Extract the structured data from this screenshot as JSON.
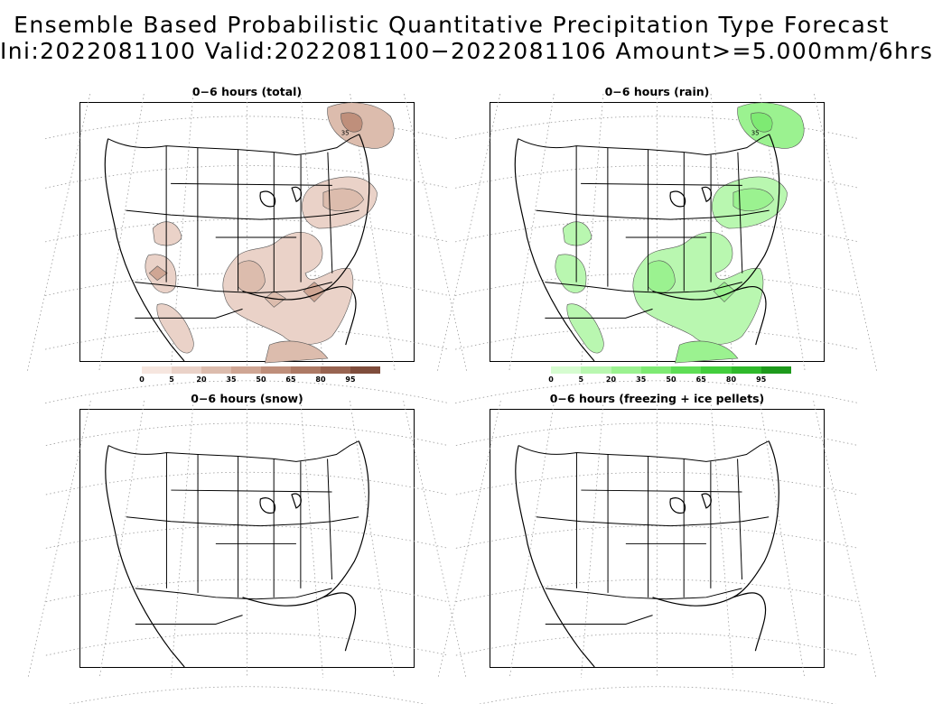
{
  "header": {
    "title_line1": "Ensemble Based Probabilistic Quantitative Precipitation Type Forecast",
    "title_line2": "Ini:2022081100 Valid:2022081100−2022081106 Amount>=5.000mm/6hrs"
  },
  "panels": [
    {
      "title": "0−6 hours (total)",
      "contour_label": "35"
    },
    {
      "title": "0−6 hours (rain)",
      "contour_label": "35"
    },
    {
      "title": "0−6 hours (snow)"
    },
    {
      "title": "0−6 hours (freezing + ice pellets)"
    }
  ],
  "colorbars": {
    "total": {
      "ticks": [
        "0",
        "5",
        "20",
        "35",
        "50",
        "65",
        "80",
        "95"
      ],
      "colors": [
        "#f6e6df",
        "#ead2c8",
        "#dcbcad",
        "#cfa694",
        "#bf8f7b",
        "#ad7a65",
        "#986451",
        "#7f4d3c"
      ]
    },
    "rain": {
      "ticks": [
        "0",
        "5",
        "20",
        "35",
        "50",
        "65",
        "80",
        "95"
      ],
      "colors": [
        "#d6fcd0",
        "#b9f7b0",
        "#9bf290",
        "#7eea73",
        "#5fde56",
        "#43ce3d",
        "#2fb92b",
        "#1e9a1c"
      ]
    }
  }
}
